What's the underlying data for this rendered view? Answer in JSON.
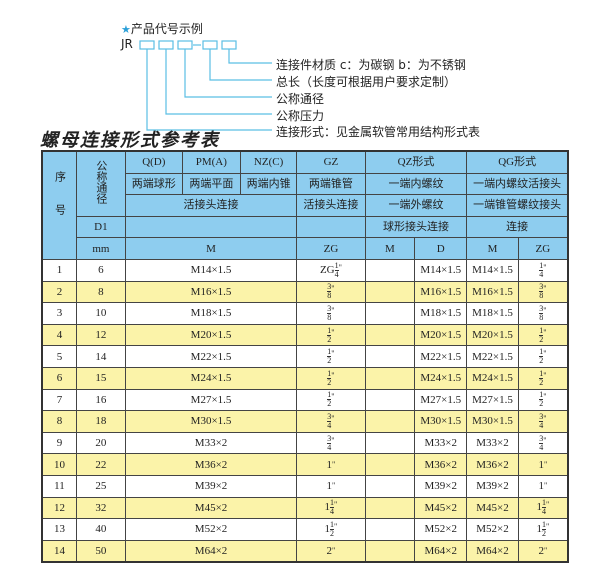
{
  "legend": {
    "heading": "产品代号示例",
    "star_icon": "star-icon",
    "code_prefix": "JR",
    "dash": "-",
    "items": [
      "连接件材质    c：为碳钢   b：为不锈钢",
      "总长（长度可根据用户要求定制）",
      "公称通径",
      "公称压力",
      "连接形式：见金属软管常用结构形式表"
    ],
    "line_color": "#5bbfe4"
  },
  "title": "螺母连接形式参考表",
  "colors": {
    "header_bg": "#8ecdef",
    "alt_row_bg": "#fbf3a9"
  },
  "header": {
    "seq": "序号",
    "dn": "公称通径",
    "r1": [
      "Q(D)",
      "PM(A)",
      "NZ(C)",
      "GZ",
      "QZ形式",
      "QG形式"
    ],
    "r2": [
      "两端球形",
      "两端平面",
      "两端内锥",
      "两端锥管",
      "一端内螺纹",
      "一端内螺纹活接头"
    ],
    "r3": [
      "活接头连接",
      "活接头连接",
      "一端外螺纹",
      "一端锥管螺纹接头"
    ],
    "r4": [
      "D1",
      "",
      "",
      "球形接头连接",
      "连接"
    ],
    "r5": [
      "mm",
      "M",
      "ZG",
      "M",
      "D",
      "M",
      "ZG"
    ]
  },
  "rows": [
    {
      "no": "1",
      "dn": "6",
      "m": "M14×1.5",
      "zg": {
        "pre": "ZG",
        "whole": "",
        "num": "1",
        "den": "4",
        "unit": "\""
      },
      "qz_m": "",
      "qz_d": "M14×1.5",
      "qg_m": "M14×1.5",
      "qg_zg": {
        "pre": "",
        "whole": "",
        "num": "1",
        "den": "4",
        "unit": "\""
      }
    },
    {
      "no": "2",
      "dn": "8",
      "m": "M16×1.5",
      "zg": {
        "pre": "",
        "whole": "",
        "num": "3",
        "den": "8",
        "unit": "\""
      },
      "qz_m": "",
      "qz_d": "M16×1.5",
      "qg_m": "M16×1.5",
      "qg_zg": {
        "pre": "",
        "whole": "",
        "num": "3",
        "den": "8",
        "unit": "\""
      }
    },
    {
      "no": "3",
      "dn": "10",
      "m": "M18×1.5",
      "zg": {
        "pre": "",
        "whole": "",
        "num": "3",
        "den": "8",
        "unit": "\""
      },
      "qz_m": "",
      "qz_d": "M18×1.5",
      "qg_m": "M18×1.5",
      "qg_zg": {
        "pre": "",
        "whole": "",
        "num": "3",
        "den": "8",
        "unit": "\""
      }
    },
    {
      "no": "4",
      "dn": "12",
      "m": "M20×1.5",
      "zg": {
        "pre": "",
        "whole": "",
        "num": "1",
        "den": "2",
        "unit": "\""
      },
      "qz_m": "",
      "qz_d": "M20×1.5",
      "qg_m": "M20×1.5",
      "qg_zg": {
        "pre": "",
        "whole": "",
        "num": "1",
        "den": "2",
        "unit": "\""
      }
    },
    {
      "no": "5",
      "dn": "14",
      "m": "M22×1.5",
      "zg": {
        "pre": "",
        "whole": "",
        "num": "1",
        "den": "2",
        "unit": "\""
      },
      "qz_m": "",
      "qz_d": "M22×1.5",
      "qg_m": "M22×1.5",
      "qg_zg": {
        "pre": "",
        "whole": "",
        "num": "1",
        "den": "2",
        "unit": "\""
      }
    },
    {
      "no": "6",
      "dn": "15",
      "m": "M24×1.5",
      "zg": {
        "pre": "",
        "whole": "",
        "num": "1",
        "den": "2",
        "unit": "\""
      },
      "qz_m": "",
      "qz_d": "M24×1.5",
      "qg_m": "M24×1.5",
      "qg_zg": {
        "pre": "",
        "whole": "",
        "num": "1",
        "den": "2",
        "unit": "\""
      }
    },
    {
      "no": "7",
      "dn": "16",
      "m": "M27×1.5",
      "zg": {
        "pre": "",
        "whole": "",
        "num": "1",
        "den": "2",
        "unit": "\""
      },
      "qz_m": "",
      "qz_d": "M27×1.5",
      "qg_m": "M27×1.5",
      "qg_zg": {
        "pre": "",
        "whole": "",
        "num": "1",
        "den": "2",
        "unit": "\""
      }
    },
    {
      "no": "8",
      "dn": "18",
      "m": "M30×1.5",
      "zg": {
        "pre": "",
        "whole": "",
        "num": "3",
        "den": "4",
        "unit": "\""
      },
      "qz_m": "",
      "qz_d": "M30×1.5",
      "qg_m": "M30×1.5",
      "qg_zg": {
        "pre": "",
        "whole": "",
        "num": "3",
        "den": "4",
        "unit": "\""
      }
    },
    {
      "no": "9",
      "dn": "20",
      "m": "M33×2",
      "zg": {
        "pre": "",
        "whole": "",
        "num": "3",
        "den": "4",
        "unit": "\""
      },
      "qz_m": "",
      "qz_d": "M33×2",
      "qg_m": "M33×2",
      "qg_zg": {
        "pre": "",
        "whole": "",
        "num": "3",
        "den": "4",
        "unit": "\""
      }
    },
    {
      "no": "10",
      "dn": "22",
      "m": "M36×2",
      "zg": {
        "pre": "",
        "whole": "1",
        "num": "",
        "den": "",
        "unit": "\""
      },
      "qz_m": "",
      "qz_d": "M36×2",
      "qg_m": "M36×2",
      "qg_zg": {
        "pre": "",
        "whole": "1",
        "num": "",
        "den": "",
        "unit": "\""
      }
    },
    {
      "no": "11",
      "dn": "25",
      "m": "M39×2",
      "zg": {
        "pre": "",
        "whole": "1",
        "num": "",
        "den": "",
        "unit": "\""
      },
      "qz_m": "",
      "qz_d": "M39×2",
      "qg_m": "M39×2",
      "qg_zg": {
        "pre": "",
        "whole": "1",
        "num": "",
        "den": "",
        "unit": "\""
      }
    },
    {
      "no": "12",
      "dn": "32",
      "m": "M45×2",
      "zg": {
        "pre": "",
        "whole": "1",
        "num": "1",
        "den": "4",
        "unit": "\""
      },
      "qz_m": "",
      "qz_d": "M45×2",
      "qg_m": "M45×2",
      "qg_zg": {
        "pre": "",
        "whole": "1",
        "num": "1",
        "den": "4",
        "unit": "\""
      }
    },
    {
      "no": "13",
      "dn": "40",
      "m": "M52×2",
      "zg": {
        "pre": "",
        "whole": "1",
        "num": "1",
        "den": "2",
        "unit": "\""
      },
      "qz_m": "",
      "qz_d": "M52×2",
      "qg_m": "M52×2",
      "qg_zg": {
        "pre": "",
        "whole": "1",
        "num": "1",
        "den": "2",
        "unit": "\""
      }
    },
    {
      "no": "14",
      "dn": "50",
      "m": "M64×2",
      "zg": {
        "pre": "",
        "whole": "2",
        "num": "",
        "den": "",
        "unit": "\""
      },
      "qz_m": "",
      "qz_d": "M64×2",
      "qg_m": "M64×2",
      "qg_zg": {
        "pre": "",
        "whole": "2",
        "num": "",
        "den": "",
        "unit": "\""
      }
    }
  ]
}
